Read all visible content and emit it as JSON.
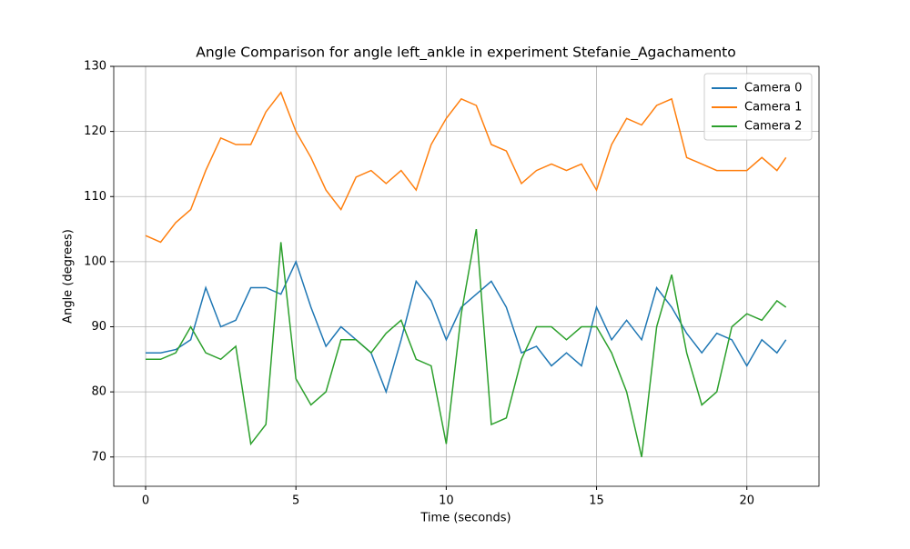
{
  "chart_data": {
    "type": "line",
    "title": "Angle Comparison for angle left_ankle in experiment Stefanie_Agachamento",
    "xlabel": "Time (seconds)",
    "ylabel": "Angle (degrees)",
    "x": [
      0,
      0.5,
      1,
      1.5,
      2,
      2.5,
      3,
      3.5,
      4,
      4.5,
      5,
      5.5,
      6,
      6.5,
      7,
      7.5,
      8,
      8.5,
      9,
      9.5,
      10,
      10.5,
      11,
      11.5,
      12,
      12.5,
      13,
      13.5,
      14,
      14.5,
      15,
      15.5,
      16,
      16.5,
      17,
      17.5,
      18,
      18.5,
      19,
      19.5,
      20,
      20.5,
      21,
      21.3
    ],
    "series": [
      {
        "name": "Camera 0",
        "color": "#1f77b4",
        "values": [
          86,
          86,
          86.5,
          88,
          96,
          90,
          91,
          96,
          96,
          95,
          100,
          93,
          87,
          90,
          88,
          86,
          80,
          88,
          97,
          94,
          88,
          93,
          95,
          97,
          93,
          86,
          87,
          84,
          86,
          84,
          93,
          88,
          91,
          88,
          96,
          93,
          89,
          86,
          89,
          88,
          84,
          88,
          86,
          88
        ]
      },
      {
        "name": "Camera 1",
        "color": "#ff7f0e",
        "values": [
          104,
          103,
          106,
          108,
          114,
          119,
          118,
          118,
          123,
          126,
          120,
          116,
          111,
          108,
          113,
          114,
          112,
          114,
          111,
          118,
          122,
          125,
          124,
          118,
          117,
          112,
          114,
          115,
          114,
          115,
          111,
          118,
          122,
          121,
          124,
          125,
          116,
          115,
          114,
          114,
          114,
          116,
          114,
          116
        ]
      },
      {
        "name": "Camera 2",
        "color": "#2ca02c",
        "values": [
          85,
          85,
          86,
          90,
          86,
          85,
          87,
          72,
          75,
          103,
          82,
          78,
          80,
          88,
          88,
          86,
          89,
          91,
          85,
          84,
          72,
          92,
          105,
          75,
          76,
          85,
          90,
          90,
          88,
          90,
          90,
          86,
          80,
          70,
          90,
          98,
          86,
          78,
          80,
          90,
          92,
          91,
          94,
          93
        ]
      }
    ],
    "xlim": [
      -1.06,
      22.4
    ],
    "ylim": [
      65.5,
      130
    ],
    "xticks": [
      0,
      5,
      10,
      15,
      20
    ],
    "yticks": [
      70,
      80,
      90,
      100,
      110,
      120,
      130
    ],
    "grid": true,
    "legend": "upper right"
  }
}
